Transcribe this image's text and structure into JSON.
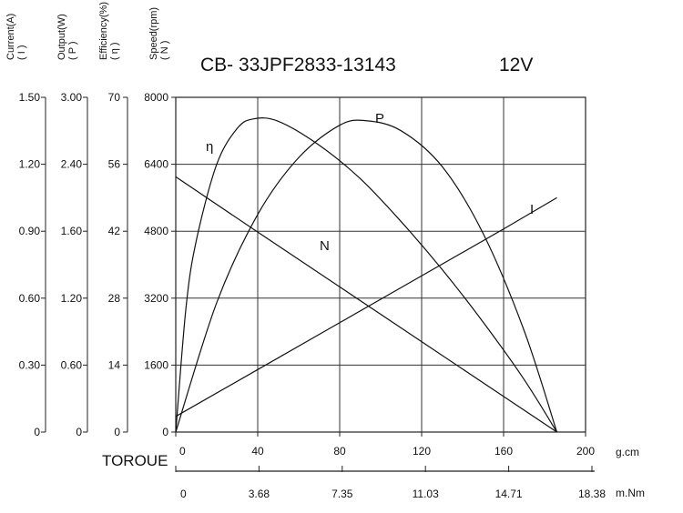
{
  "title": "CB- 33JPF2833-13143",
  "voltage": "12V",
  "axes": {
    "current": {
      "title": "Current(A)",
      "symbol": "( I )",
      "ticks": [
        "1.50",
        "1.20",
        "0.90",
        "0.60",
        "0.30",
        "0"
      ]
    },
    "output": {
      "title": "Output(W)",
      "symbol": "( P )",
      "ticks": [
        "3.00",
        "2.40",
        "1.60",
        "1.20",
        "0.60",
        "0"
      ]
    },
    "efficiency": {
      "title": "Efficiency(%)",
      "symbol": "( η )",
      "ticks": [
        "70",
        "56",
        "42",
        "28",
        "14",
        "0"
      ]
    },
    "speed": {
      "title": "Speed(rpm)",
      "symbol": "( N )",
      "ticks": [
        "8000",
        "6400",
        "4800",
        "3200",
        "1600",
        "0"
      ]
    },
    "torque_gcm": {
      "ticks": [
        "0",
        "40",
        "80",
        "120",
        "160",
        "200"
      ],
      "unit": "g.cm"
    },
    "torque_mnm": {
      "ticks": [
        "0",
        "3.68",
        "7.35",
        "11.03",
        "14.71",
        "18.38"
      ],
      "unit": "m.Nm"
    },
    "torque_label": "TOROUE"
  },
  "chart_data": {
    "type": "line",
    "title": "CB- 33JPF2833-13143",
    "subtitle": "12V",
    "xlabel": "TOROUE",
    "xunit_primary": "g.cm",
    "xunit_secondary": "m.Nm",
    "xlim": [
      0,
      200
    ],
    "grid": true,
    "series": [
      {
        "name": "N",
        "axis": "speed",
        "ylim": [
          0,
          8000
        ],
        "x": [
          0,
          40,
          80,
          120,
          160,
          186
        ],
        "y": [
          6100,
          4780,
          3470,
          2160,
          850,
          0
        ]
      },
      {
        "name": "I",
        "axis": "current",
        "ylim": [
          0,
          1.5
        ],
        "x": [
          0,
          40,
          80,
          120,
          160,
          186
        ],
        "y": [
          0.07,
          0.28,
          0.49,
          0.7,
          0.91,
          1.05
        ]
      },
      {
        "name": "P",
        "axis": "output",
        "ylim": [
          0,
          3.0
        ],
        "x": [
          0,
          20,
          40,
          60,
          80,
          93,
          110,
          130,
          150,
          170,
          186
        ],
        "y": [
          0,
          1.16,
          1.95,
          2.46,
          2.75,
          2.79,
          2.7,
          2.38,
          1.78,
          0.91,
          0
        ]
      },
      {
        "name": "η",
        "axis": "efficiency",
        "ylim": [
          0,
          70
        ],
        "x": [
          0,
          5,
          10,
          20,
          30,
          38,
          50,
          70,
          90,
          110,
          130,
          150,
          170,
          186
        ],
        "y": [
          0,
          26,
          40,
          56,
          63.5,
          65.5,
          65,
          60,
          53,
          44,
          34,
          23,
          11,
          0
        ]
      }
    ],
    "curve_labels": [
      {
        "text": "η",
        "series": "η"
      },
      {
        "text": "P",
        "series": "P"
      },
      {
        "text": "I",
        "series": "I"
      },
      {
        "text": "N",
        "series": "N"
      }
    ]
  }
}
